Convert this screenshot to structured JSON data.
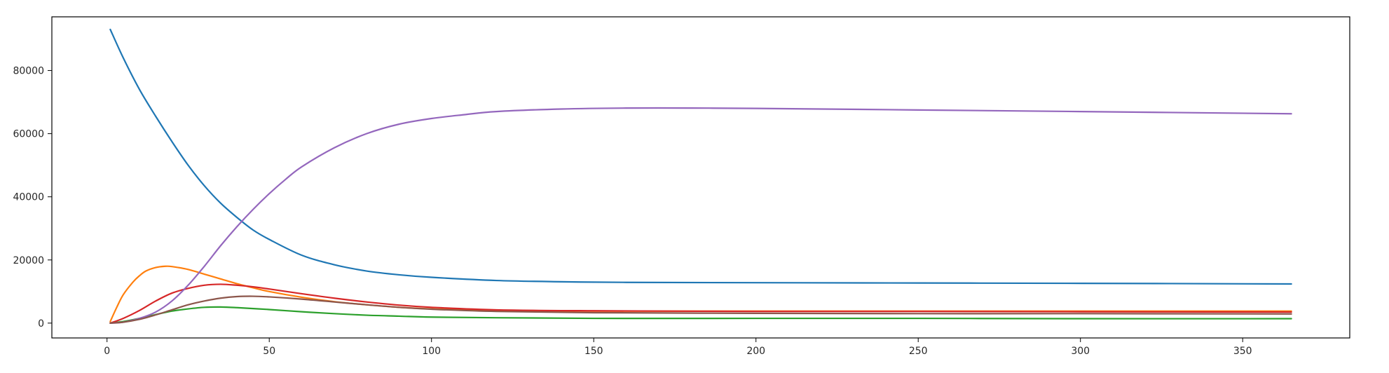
{
  "chart_data": {
    "type": "line",
    "title": "",
    "xlabel": "",
    "ylabel": "",
    "xlim": [
      -17,
      383
    ],
    "ylim": [
      -4700,
      97000
    ],
    "x_ticks": [
      0,
      50,
      100,
      150,
      200,
      250,
      300,
      350
    ],
    "x_tick_labels": [
      "0",
      "50",
      "100",
      "150",
      "200",
      "250",
      "300",
      "350"
    ],
    "y_ticks": [
      0,
      20000,
      40000,
      60000,
      80000
    ],
    "y_tick_labels": [
      "0",
      "20000",
      "40000",
      "60000",
      "80000"
    ],
    "grid": false,
    "legend": "none",
    "series": [
      {
        "color": "#1f77b4",
        "x": [
          1,
          5,
          10,
          15,
          20,
          25,
          30,
          35,
          40,
          45,
          50,
          60,
          70,
          80,
          90,
          100,
          120,
          140,
          160,
          200,
          250,
          300,
          365
        ],
        "y": [
          93000,
          84000,
          74000,
          65500,
          57500,
          50000,
          43500,
          38000,
          33500,
          29500,
          26500,
          21500,
          18500,
          16500,
          15300,
          14500,
          13500,
          13100,
          12900,
          12800,
          12700,
          12600,
          12400
        ]
      },
      {
        "color": "#ff7f0e",
        "x": [
          1,
          3,
          5,
          8,
          10,
          12,
          15,
          18,
          20,
          25,
          30,
          35,
          40,
          45,
          50,
          60,
          70,
          80,
          90,
          100,
          120,
          150,
          200,
          250,
          300,
          365
        ],
        "y": [
          500,
          5000,
          9000,
          13000,
          15000,
          16500,
          17600,
          18000,
          17900,
          17000,
          15500,
          14000,
          12500,
          11200,
          10000,
          8200,
          6800,
          5800,
          5000,
          4500,
          4000,
          3800,
          3800,
          3800,
          3800,
          3800
        ]
      },
      {
        "color": "#2ca02c",
        "x": [
          1,
          5,
          10,
          15,
          20,
          25,
          30,
          35,
          40,
          50,
          60,
          70,
          80,
          90,
          100,
          120,
          150,
          200,
          250,
          300,
          365
        ],
        "y": [
          0,
          500,
          1500,
          2700,
          3800,
          4500,
          5000,
          5100,
          4900,
          4300,
          3600,
          3000,
          2500,
          2200,
          1900,
          1700,
          1500,
          1500,
          1500,
          1400,
          1400
        ]
      },
      {
        "color": "#d62728",
        "x": [
          1,
          5,
          10,
          15,
          20,
          25,
          30,
          35,
          40,
          45,
          50,
          60,
          70,
          80,
          90,
          100,
          120,
          150,
          200,
          250,
          300,
          365
        ],
        "y": [
          0,
          1500,
          4000,
          7000,
          9500,
          11000,
          12000,
          12300,
          12000,
          11500,
          10800,
          9300,
          7900,
          6700,
          5700,
          5000,
          4200,
          3900,
          3700,
          3700,
          3600,
          3500
        ]
      },
      {
        "color": "#9467bd",
        "x": [
          1,
          5,
          10,
          15,
          20,
          25,
          30,
          35,
          40,
          45,
          50,
          55,
          60,
          70,
          80,
          90,
          100,
          110,
          120,
          140,
          160,
          180,
          200,
          250,
          300,
          365
        ],
        "y": [
          0,
          300,
          1500,
          3500,
          7000,
          12000,
          18000,
          24500,
          30500,
          36000,
          41000,
          45500,
          49500,
          55500,
          60000,
          63000,
          64800,
          66000,
          67000,
          67800,
          68100,
          68100,
          68000,
          67500,
          67000,
          66300
        ]
      },
      {
        "color": "#8c564b",
        "x": [
          1,
          5,
          10,
          15,
          20,
          25,
          30,
          35,
          40,
          45,
          50,
          60,
          70,
          80,
          90,
          100,
          120,
          150,
          200,
          250,
          300,
          365
        ],
        "y": [
          0,
          300,
          1200,
          2600,
          4200,
          5800,
          7000,
          7900,
          8400,
          8500,
          8300,
          7600,
          6700,
          5800,
          5000,
          4400,
          3700,
          3300,
          3100,
          3000,
          3000,
          2900
        ]
      }
    ]
  }
}
